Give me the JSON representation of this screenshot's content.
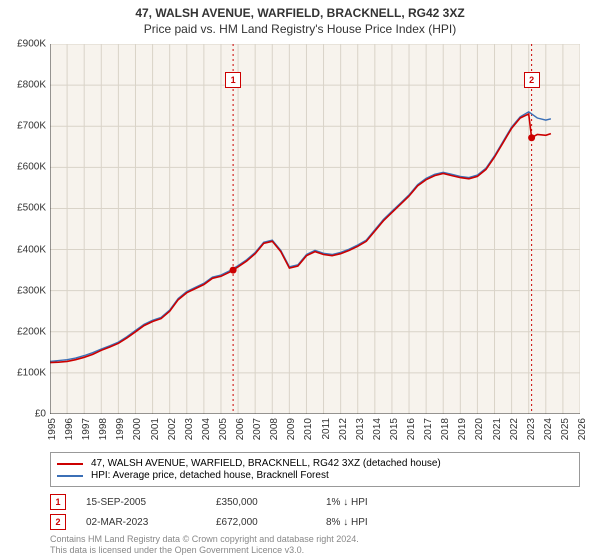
{
  "titles": {
    "address": "47, WALSH AVENUE, WARFIELD, BRACKNELL, RG42 3XZ",
    "subtitle": "Price paid vs. HM Land Registry's House Price Index (HPI)"
  },
  "chart": {
    "type": "line",
    "background_color": "#f7f3ed",
    "grid_color": "#d9d3c8",
    "axis_color": "#333333",
    "x": {
      "min": 1995,
      "max": 2026,
      "ticks": [
        1995,
        1996,
        1997,
        1998,
        1999,
        2000,
        2001,
        2002,
        2003,
        2004,
        2005,
        2006,
        2007,
        2008,
        2009,
        2010,
        2011,
        2012,
        2013,
        2014,
        2015,
        2016,
        2017,
        2018,
        2019,
        2020,
        2021,
        2022,
        2023,
        2024,
        2025,
        2026
      ]
    },
    "y": {
      "min": 0,
      "max": 900000,
      "ticks": [
        0,
        100000,
        200000,
        300000,
        400000,
        500000,
        600000,
        700000,
        800000,
        900000
      ],
      "tick_labels": [
        "£0",
        "£100K",
        "£200K",
        "£300K",
        "£400K",
        "£500K",
        "£600K",
        "£700K",
        "£800K",
        "£900K"
      ]
    },
    "event_lines": [
      {
        "id": 1,
        "date": 2005.71,
        "color": "#cc0000",
        "label_y_offset": 28
      },
      {
        "id": 2,
        "date": 2023.17,
        "color": "#cc0000",
        "label_y_offset": 28
      }
    ],
    "series": [
      {
        "name": "property",
        "label": "47, WALSH AVENUE, WARFIELD, BRACKNELL, RG42 3XZ (detached house)",
        "color": "#cc0000",
        "line_width": 1.6,
        "data": [
          [
            1995.0,
            125000
          ],
          [
            1995.5,
            126000
          ],
          [
            1996.0,
            128000
          ],
          [
            1996.5,
            132000
          ],
          [
            1997.0,
            138000
          ],
          [
            1997.5,
            145000
          ],
          [
            1998.0,
            155000
          ],
          [
            1998.5,
            163000
          ],
          [
            1999.0,
            172000
          ],
          [
            1999.5,
            185000
          ],
          [
            2000.0,
            200000
          ],
          [
            2000.5,
            215000
          ],
          [
            2001.0,
            225000
          ],
          [
            2001.5,
            232000
          ],
          [
            2002.0,
            250000
          ],
          [
            2002.5,
            278000
          ],
          [
            2003.0,
            295000
          ],
          [
            2003.5,
            305000
          ],
          [
            2004.0,
            315000
          ],
          [
            2004.5,
            330000
          ],
          [
            2005.0,
            335000
          ],
          [
            2005.5,
            345000
          ],
          [
            2005.71,
            350000
          ],
          [
            2006.0,
            358000
          ],
          [
            2006.5,
            372000
          ],
          [
            2007.0,
            390000
          ],
          [
            2007.5,
            415000
          ],
          [
            2008.0,
            420000
          ],
          [
            2008.5,
            395000
          ],
          [
            2009.0,
            355000
          ],
          [
            2009.5,
            360000
          ],
          [
            2010.0,
            385000
          ],
          [
            2010.5,
            395000
          ],
          [
            2011.0,
            388000
          ],
          [
            2011.5,
            385000
          ],
          [
            2012.0,
            390000
          ],
          [
            2012.5,
            398000
          ],
          [
            2013.0,
            408000
          ],
          [
            2013.5,
            420000
          ],
          [
            2014.0,
            445000
          ],
          [
            2014.5,
            470000
          ],
          [
            2015.0,
            490000
          ],
          [
            2015.5,
            510000
          ],
          [
            2016.0,
            530000
          ],
          [
            2016.5,
            555000
          ],
          [
            2017.0,
            570000
          ],
          [
            2017.5,
            580000
          ],
          [
            2018.0,
            585000
          ],
          [
            2018.5,
            580000
          ],
          [
            2019.0,
            575000
          ],
          [
            2019.5,
            572000
          ],
          [
            2020.0,
            578000
          ],
          [
            2020.5,
            595000
          ],
          [
            2021.0,
            625000
          ],
          [
            2021.5,
            660000
          ],
          [
            2022.0,
            695000
          ],
          [
            2022.5,
            720000
          ],
          [
            2023.0,
            730000
          ],
          [
            2023.17,
            672000
          ],
          [
            2023.5,
            680000
          ],
          [
            2024.0,
            678000
          ],
          [
            2024.3,
            682000
          ]
        ]
      },
      {
        "name": "hpi",
        "label": "HPI: Average price, detached house, Bracknell Forest",
        "color": "#3b6fb6",
        "line_width": 1.4,
        "data": [
          [
            1995.0,
            128000
          ],
          [
            1995.5,
            130000
          ],
          [
            1996.0,
            132000
          ],
          [
            1996.5,
            136000
          ],
          [
            1997.0,
            142000
          ],
          [
            1997.5,
            149000
          ],
          [
            1998.0,
            158000
          ],
          [
            1998.5,
            166000
          ],
          [
            1999.0,
            175000
          ],
          [
            1999.5,
            188000
          ],
          [
            2000.0,
            203000
          ],
          [
            2000.5,
            218000
          ],
          [
            2001.0,
            228000
          ],
          [
            2001.5,
            235000
          ],
          [
            2002.0,
            253000
          ],
          [
            2002.5,
            281000
          ],
          [
            2003.0,
            298000
          ],
          [
            2003.5,
            308000
          ],
          [
            2004.0,
            318000
          ],
          [
            2004.5,
            333000
          ],
          [
            2005.0,
            338000
          ],
          [
            2005.5,
            348000
          ],
          [
            2006.0,
            361000
          ],
          [
            2006.5,
            375000
          ],
          [
            2007.0,
            393000
          ],
          [
            2007.5,
            418000
          ],
          [
            2008.0,
            423000
          ],
          [
            2008.5,
            398000
          ],
          [
            2009.0,
            358000
          ],
          [
            2009.5,
            363000
          ],
          [
            2010.0,
            388000
          ],
          [
            2010.5,
            398000
          ],
          [
            2011.0,
            391000
          ],
          [
            2011.5,
            388000
          ],
          [
            2012.0,
            393000
          ],
          [
            2012.5,
            401000
          ],
          [
            2013.0,
            411000
          ],
          [
            2013.5,
            423000
          ],
          [
            2014.0,
            448000
          ],
          [
            2014.5,
            473000
          ],
          [
            2015.0,
            493000
          ],
          [
            2015.5,
            513000
          ],
          [
            2016.0,
            533000
          ],
          [
            2016.5,
            558000
          ],
          [
            2017.0,
            573000
          ],
          [
            2017.5,
            583000
          ],
          [
            2018.0,
            588000
          ],
          [
            2018.5,
            583000
          ],
          [
            2019.0,
            578000
          ],
          [
            2019.5,
            575000
          ],
          [
            2020.0,
            581000
          ],
          [
            2020.5,
            598000
          ],
          [
            2021.0,
            628000
          ],
          [
            2021.5,
            663000
          ],
          [
            2022.0,
            698000
          ],
          [
            2022.5,
            723000
          ],
          [
            2023.0,
            735000
          ],
          [
            2023.5,
            720000
          ],
          [
            2024.0,
            715000
          ],
          [
            2024.3,
            718000
          ]
        ]
      }
    ],
    "sale_markers": [
      {
        "date": 2005.71,
        "price": 350000,
        "color": "#cc0000"
      },
      {
        "date": 2023.17,
        "price": 672000,
        "color": "#cc0000"
      }
    ]
  },
  "sales": [
    {
      "id": "1",
      "date": "15-SEP-2005",
      "price": "£350,000",
      "diff": "1% ↓ HPI",
      "color": "#cc0000"
    },
    {
      "id": "2",
      "date": "02-MAR-2023",
      "price": "£672,000",
      "diff": "8% ↓ HPI",
      "color": "#cc0000"
    }
  ],
  "footer": {
    "line1": "Contains HM Land Registry data © Crown copyright and database right 2024.",
    "line2": "This data is licensed under the Open Government Licence v3.0."
  },
  "label_fontsize": 10,
  "title_fontsize": 12
}
